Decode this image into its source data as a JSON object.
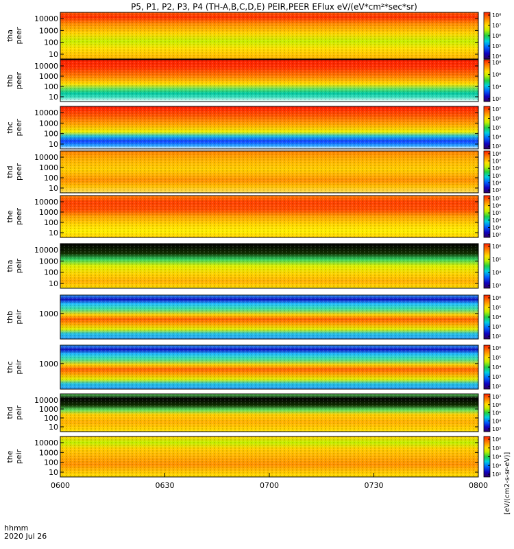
{
  "chart_data": {
    "type": "heatmap",
    "title": "P5, P1, P2, P3, P4 (TH-A,B,C,D,E) PEIR,PEER EFlux eV/(eV*cm²*sec*sr)",
    "colorbar_unit_label": "[eV/(cm2-s-sr-eV)]",
    "x_ticks": [
      "0600",
      "0630",
      "0700",
      "0730",
      "0800"
    ],
    "x_footer_label": "hhmm",
    "x_footer_date": "2020 Jul 26",
    "panels": [
      {
        "probe": "tha",
        "species": "peer",
        "y_ticks": [
          "10",
          "100",
          "1000",
          "10000"
        ],
        "cbar_ticks": [
          "10⁴",
          "10⁵",
          "10⁶",
          "10⁷",
          "10⁸"
        ],
        "profile": [
          [
            "#ff5a00",
            0
          ],
          [
            "#ff3000",
            0.1
          ],
          [
            "#ff8c00",
            0.25
          ],
          [
            "#ffd400",
            0.45
          ],
          [
            "#c8f000",
            0.62
          ],
          [
            "#ffe000",
            0.78
          ],
          [
            "#ffb000",
            1
          ]
        ]
      },
      {
        "probe": "thb",
        "species": "peer",
        "y_ticks": [
          "10",
          "100",
          "1000",
          "10000"
        ],
        "cbar_ticks": [
          "10²",
          "10⁴",
          "10⁶",
          "10⁸"
        ],
        "profile": [
          [
            "#ff2000",
            0
          ],
          [
            "#ff3000",
            0.18
          ],
          [
            "#ff8000",
            0.4
          ],
          [
            "#ffe000",
            0.58
          ],
          [
            "#60e060",
            0.7
          ],
          [
            "#00c8a0",
            0.8
          ],
          [
            "#40e0c0",
            0.9
          ],
          [
            "#ffffff",
            1
          ]
        ]
      },
      {
        "probe": "thc",
        "species": "peer",
        "y_ticks": [
          "10",
          "100",
          "1000",
          "10000"
        ],
        "cbar_ticks": [
          "10³",
          "10⁴",
          "10⁵",
          "10⁶",
          "10⁷"
        ],
        "profile": [
          [
            "#ff1a00",
            0
          ],
          [
            "#ff5000",
            0.2
          ],
          [
            "#ffb000",
            0.45
          ],
          [
            "#f0f000",
            0.6
          ],
          [
            "#20c0e0",
            0.7
          ],
          [
            "#1040ff",
            0.82
          ],
          [
            "#20a0ff",
            0.92
          ],
          [
            "#ffffff",
            1
          ]
        ]
      },
      {
        "probe": "thd",
        "species": "peer",
        "y_ticks": [
          "10",
          "100",
          "1000",
          "10000"
        ],
        "cbar_ticks": [
          "10³",
          "10⁴",
          "10⁵",
          "10⁶",
          "10⁷",
          "10⁸"
        ],
        "profile": [
          [
            "#ff8000",
            0
          ],
          [
            "#ffb000",
            0.2
          ],
          [
            "#ffd000",
            0.45
          ],
          [
            "#ff9000",
            0.7
          ],
          [
            "#ffc000",
            0.85
          ],
          [
            "#ffe060",
            1
          ]
        ]
      },
      {
        "probe": "the",
        "species": "peer",
        "y_ticks": [
          "10",
          "100",
          "1000",
          "10000"
        ],
        "cbar_ticks": [
          "10²",
          "10³",
          "10⁴",
          "10⁵",
          "10⁶",
          "10⁷"
        ],
        "profile": [
          [
            "#ff8000",
            0
          ],
          [
            "#ff4000",
            0.15
          ],
          [
            "#ff5000",
            0.35
          ],
          [
            "#ffa000",
            0.5
          ],
          [
            "#ffd800",
            0.7
          ],
          [
            "#fff000",
            0.85
          ],
          [
            "#ffd000",
            1
          ]
        ]
      },
      {
        "probe": "tha",
        "species": "peir",
        "y_ticks": [
          "10",
          "100",
          "1000",
          "10000"
        ],
        "cbar_ticks": [
          "10³",
          "10⁴",
          "10⁵",
          "10⁶"
        ],
        "profile": [
          [
            "#000000",
            0
          ],
          [
            "#103000",
            0.22
          ],
          [
            "#30d060",
            0.35
          ],
          [
            "#e0f000",
            0.5
          ],
          [
            "#ffd000",
            0.7
          ],
          [
            "#ffb000",
            0.85
          ],
          [
            "#ffe000",
            1
          ]
        ]
      },
      {
        "probe": "thb",
        "species": "peir",
        "y_ticks": [
          "1000"
        ],
        "cbar_ticks": [
          "10²",
          "10³",
          "10⁴",
          "10⁵",
          "10⁶"
        ],
        "profile": [
          [
            "#30a0ff",
            0
          ],
          [
            "#1010c0",
            0.1
          ],
          [
            "#20c0ff",
            0.2
          ],
          [
            "#40e0a0",
            0.32
          ],
          [
            "#ffd000",
            0.45
          ],
          [
            "#ff6000",
            0.55
          ],
          [
            "#ffa000",
            0.65
          ],
          [
            "#e0f000",
            0.78
          ],
          [
            "#20c0e0",
            0.88
          ],
          [
            "#30a0ff",
            1
          ]
        ]
      },
      {
        "probe": "thc",
        "species": "peir",
        "y_ticks": [
          "1000"
        ],
        "cbar_ticks": [
          "10²",
          "10³",
          "10⁴",
          "10⁵",
          "10⁶"
        ],
        "profile": [
          [
            "#30a0ff",
            0
          ],
          [
            "#1010c0",
            0.1
          ],
          [
            "#20c0ff",
            0.2
          ],
          [
            "#40e0a0",
            0.32
          ],
          [
            "#ffd000",
            0.45
          ],
          [
            "#ff6000",
            0.55
          ],
          [
            "#ffa000",
            0.65
          ],
          [
            "#e0f000",
            0.78
          ],
          [
            "#20c0e0",
            0.88
          ],
          [
            "#30a0ff",
            1
          ]
        ]
      },
      {
        "probe": "thd",
        "species": "peir",
        "y_ticks": [
          "10",
          "100",
          "1000",
          "10000"
        ],
        "cbar_ticks": [
          "10³",
          "10⁴",
          "10⁵",
          "10⁶",
          "10⁷"
        ],
        "profile": [
          [
            "#60e060",
            0
          ],
          [
            "#000000",
            0.12
          ],
          [
            "#103000",
            0.3
          ],
          [
            "#60e060",
            0.42
          ],
          [
            "#ffd000",
            0.55
          ],
          [
            "#ffb000",
            0.75
          ],
          [
            "#ffe000",
            1
          ]
        ]
      },
      {
        "probe": "the",
        "species": "peir",
        "y_ticks": [
          "10",
          "100",
          "1000",
          "10000"
        ],
        "cbar_ticks": [
          "10²",
          "10³",
          "10⁴",
          "10⁵",
          "10⁶"
        ],
        "profile": [
          [
            "#ffd000",
            0
          ],
          [
            "#c0f000",
            0.15
          ],
          [
            "#ffd000",
            0.3
          ],
          [
            "#ffb000",
            0.5
          ],
          [
            "#ff9000",
            0.7
          ],
          [
            "#ffc000",
            0.85
          ],
          [
            "#ffe000",
            1
          ]
        ]
      }
    ]
  }
}
